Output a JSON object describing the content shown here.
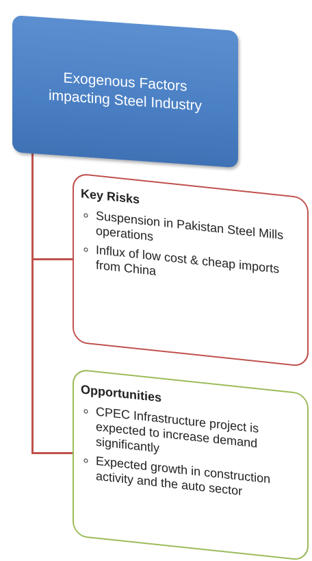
{
  "header": {
    "title_lines": [
      "Exogenous Factors",
      "impacting Steel Industry"
    ]
  },
  "boxes": [
    {
      "heading": "Key Risks",
      "bullets": [
        "Suspension in Pakistan Steel Mills operations",
        "Influx of low cost & cheap imports from China"
      ]
    },
    {
      "heading": "Opportunities",
      "bullets": [
        "CPEC Infrastructure project is expected to increase demand significantly",
        "Expected growth in construction activity and the auto sector"
      ]
    }
  ]
}
